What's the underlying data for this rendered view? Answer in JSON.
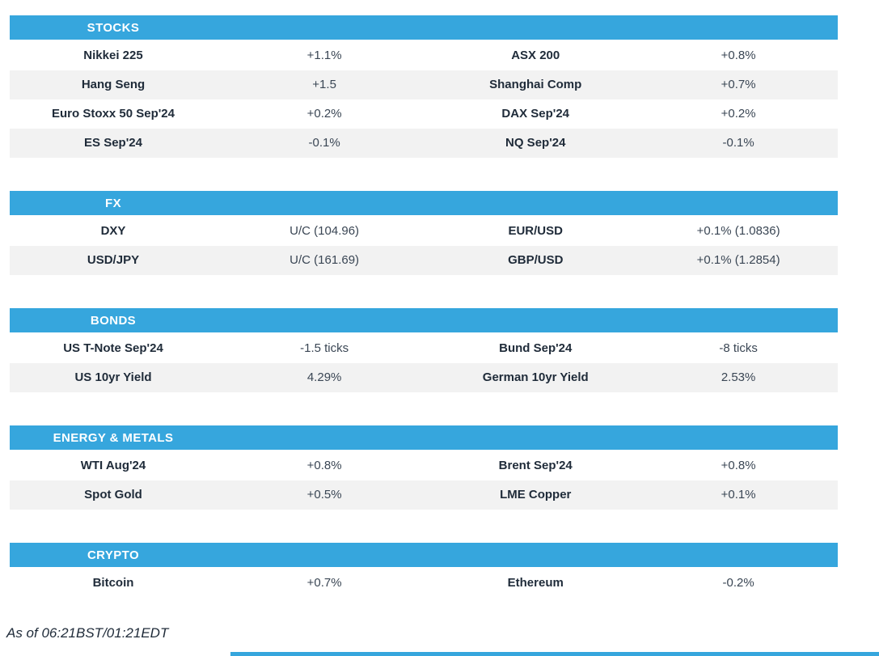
{
  "colors": {
    "header_blue": "#36A6DD",
    "row_alt_grey": "#F2F2F2",
    "label_text": "#1F2B39",
    "value_text": "#3A4654"
  },
  "sections": [
    {
      "title": "STOCKS",
      "rows": [
        [
          "Nikkei 225",
          "+1.1%",
          "ASX 200",
          "+0.8%"
        ],
        [
          "Hang Seng",
          "+1.5",
          "Shanghai Comp",
          "+0.7%"
        ],
        [
          "Euro Stoxx 50 Sep'24",
          "+0.2%",
          "DAX Sep'24",
          "+0.2%"
        ],
        [
          "ES Sep'24",
          "-0.1%",
          "NQ Sep'24",
          "-0.1%"
        ]
      ]
    },
    {
      "title": "FX",
      "rows": [
        [
          "DXY",
          "U/C (104.96)",
          "EUR/USD",
          "+0.1% (1.0836)"
        ],
        [
          "USD/JPY",
          "U/C (161.69)",
          "GBP/USD",
          "+0.1% (1.2854)"
        ]
      ]
    },
    {
      "title": "BONDS",
      "rows": [
        [
          "US T-Note Sep'24",
          "-1.5 ticks",
          "Bund Sep'24",
          "-8 ticks"
        ],
        [
          "US 10yr Yield",
          "4.29%",
          "German 10yr Yield",
          "2.53%"
        ]
      ]
    },
    {
      "title": "ENERGY & METALS",
      "rows": [
        [
          "WTI Aug'24",
          "+0.8%",
          "Brent Sep'24",
          "+0.8%"
        ],
        [
          "Spot Gold",
          "+0.5%",
          "LME Copper",
          "+0.1%"
        ]
      ]
    },
    {
      "title": "CRYPTO",
      "rows": [
        [
          "Bitcoin",
          "+0.7%",
          "Ethereum",
          "-0.2%"
        ]
      ]
    }
  ],
  "footer": {
    "timestamp_note": "As of 06:21BST/01:21EDT"
  }
}
